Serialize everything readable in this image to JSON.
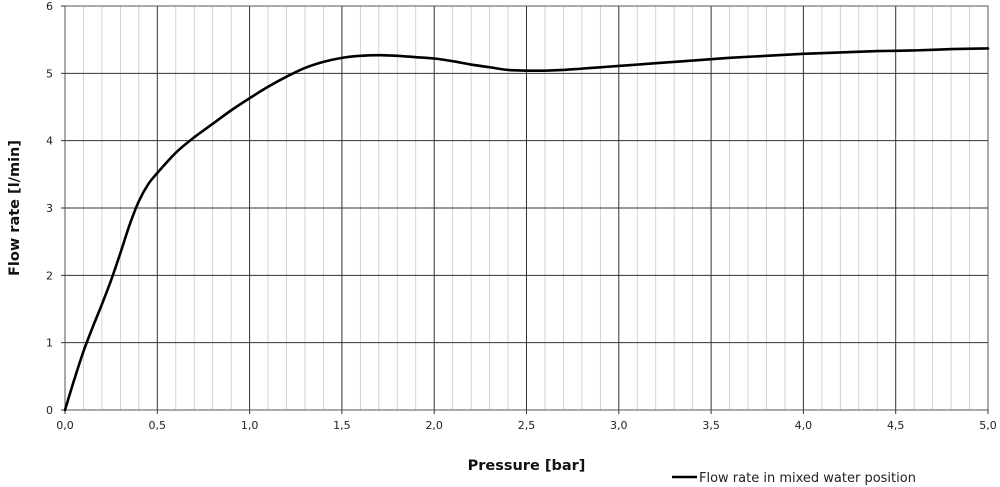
{
  "chart_data": {
    "type": "line",
    "title": "",
    "xlabel": "Pressure [bar]",
    "ylabel": "Flow rate [l/min]",
    "xlim": [
      0,
      5
    ],
    "ylim": [
      0,
      6
    ],
    "x_ticks": [
      "0,0",
      "0,5",
      "1,0",
      "1,5",
      "2,0",
      "2,5",
      "3,0",
      "3,5",
      "4,0",
      "4,5",
      "5,0"
    ],
    "y_ticks": [
      "0",
      "1",
      "2",
      "3",
      "4",
      "5",
      "6"
    ],
    "grid": true,
    "legend_position": "bottom-right",
    "series": [
      {
        "name": "Flow rate in mixed water position",
        "color": "#000000",
        "x": [
          0,
          0.05,
          0.1,
          0.15,
          0.2,
          0.25,
          0.3,
          0.35,
          0.4,
          0.45,
          0.5,
          0.6,
          0.7,
          0.8,
          0.9,
          1.0,
          1.1,
          1.2,
          1.3,
          1.4,
          1.5,
          1.6,
          1.7,
          1.8,
          1.9,
          2.0,
          2.1,
          2.2,
          2.3,
          2.4,
          2.5,
          2.6,
          2.7,
          2.8,
          2.9,
          3.0,
          3.2,
          3.4,
          3.6,
          3.8,
          4.0,
          4.2,
          4.4,
          4.6,
          4.8,
          5.0
        ],
        "y": [
          0,
          0.45,
          0.87,
          1.23,
          1.57,
          1.93,
          2.33,
          2.75,
          3.1,
          3.35,
          3.52,
          3.82,
          4.05,
          4.25,
          4.45,
          4.63,
          4.8,
          4.95,
          5.08,
          5.17,
          5.23,
          5.26,
          5.27,
          5.26,
          5.24,
          5.22,
          5.18,
          5.13,
          5.09,
          5.05,
          5.04,
          5.04,
          5.05,
          5.07,
          5.09,
          5.11,
          5.15,
          5.19,
          5.23,
          5.26,
          5.29,
          5.31,
          5.33,
          5.34,
          5.36,
          5.37
        ]
      }
    ]
  }
}
